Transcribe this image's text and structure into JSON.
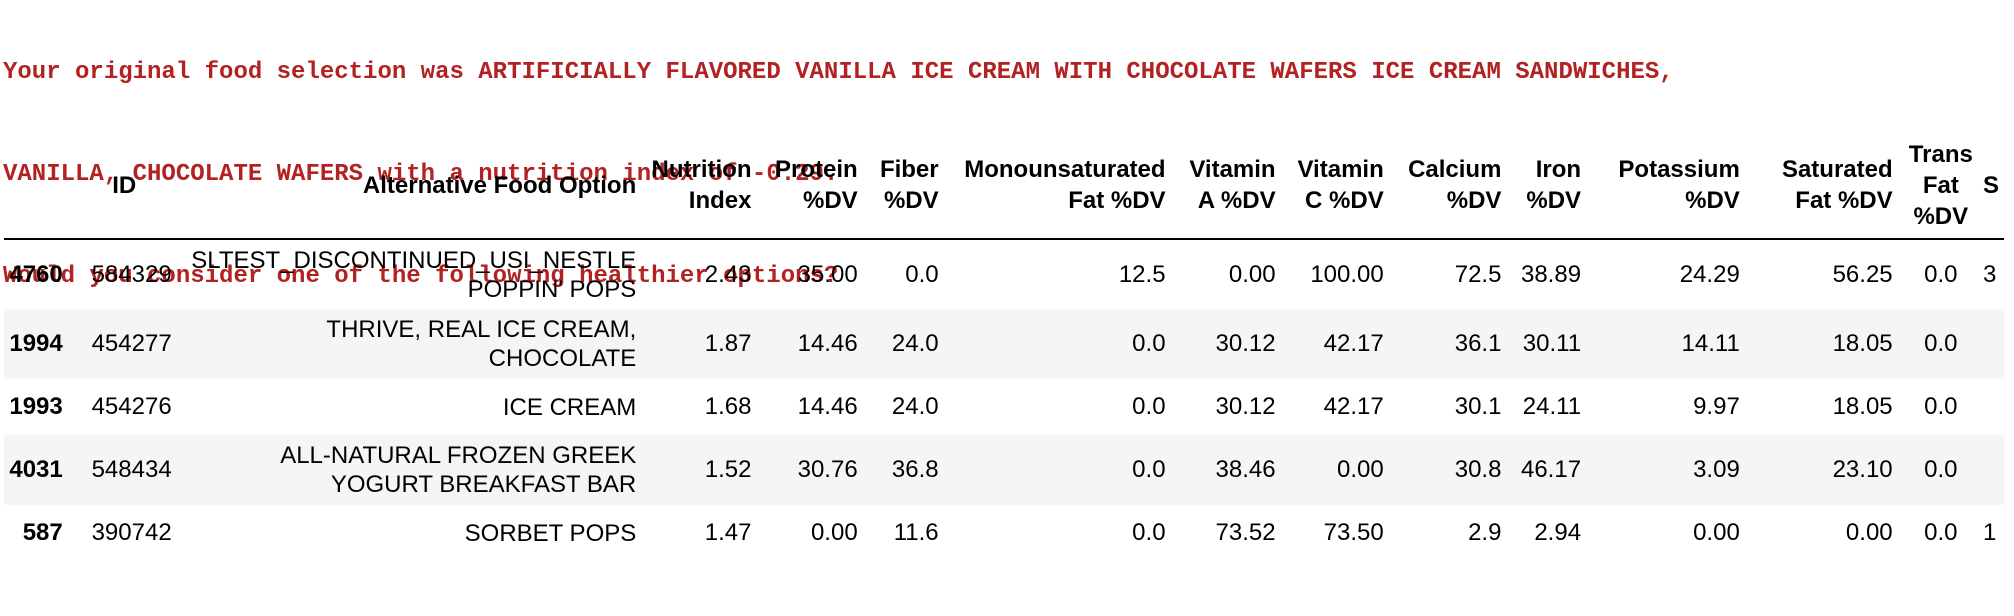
{
  "message": {
    "line1": "Your original food selection was ARTIFICIALLY FLAVORED VANILLA ICE CREAM WITH CHOCOLATE WAFERS ICE CREAM SANDWICHES,",
    "line2": "VANILLA, CHOCOLATE WAFERS with a nutrition index of -0.29.",
    "line3": "Would you consider one of the following healthier options?"
  },
  "table": {
    "columns": [
      {
        "l1": "",
        "l2": "",
        "l3": ""
      },
      {
        "l1": "ID",
        "l2": "",
        "l3": ""
      },
      {
        "l1": "Alternative Food Option",
        "l2": "",
        "l3": ""
      },
      {
        "l1": "Nutrition",
        "l2": "Index",
        "l3": ""
      },
      {
        "l1": "Protein",
        "l2": "%DV",
        "l3": ""
      },
      {
        "l1": "Fiber",
        "l2": "%DV",
        "l3": ""
      },
      {
        "l1": "Monounsaturated",
        "l2": "Fat %DV",
        "l3": ""
      },
      {
        "l1": "Vitamin",
        "l2": "A %DV",
        "l3": ""
      },
      {
        "l1": "Vitamin",
        "l2": "C %DV",
        "l3": ""
      },
      {
        "l1": "Calcium",
        "l2": "%DV",
        "l3": ""
      },
      {
        "l1": "Iron",
        "l2": "%DV",
        "l3": ""
      },
      {
        "l1": "Potassium",
        "l2": "%DV",
        "l3": ""
      },
      {
        "l1": "Saturated",
        "l2": "Fat %DV",
        "l3": ""
      },
      {
        "l1": "Trans",
        "l2": "Fat",
        "l3": "%DV"
      },
      {
        "l1": "S",
        "l2": "",
        "l3": ""
      }
    ],
    "rows": [
      {
        "index": "4760",
        "id": "584329",
        "food1": "SLTEST_DISCONTINUED_USI_NESTLE",
        "food2": "POPPIN' POPS",
        "nutrition_index": "2.43",
        "protein": "35.00",
        "fiber": "0.0",
        "mono_fat": "12.5",
        "vit_a": "0.00",
        "vit_c": "100.00",
        "calcium": "72.5",
        "iron": "38.89",
        "potassium": "24.29",
        "sat_fat": "56.25",
        "trans_fat": "0.0",
        "cut": "3"
      },
      {
        "index": "1994",
        "id": "454277",
        "food1": "THRIVE, REAL ICE CREAM,",
        "food2": "CHOCOLATE",
        "nutrition_index": "1.87",
        "protein": "14.46",
        "fiber": "24.0",
        "mono_fat": "0.0",
        "vit_a": "30.12",
        "vit_c": "42.17",
        "calcium": "36.1",
        "iron": "30.11",
        "potassium": "14.11",
        "sat_fat": "18.05",
        "trans_fat": "0.0",
        "cut": ""
      },
      {
        "index": "1993",
        "id": "454276",
        "food1": "ICE CREAM",
        "food2": "",
        "nutrition_index": "1.68",
        "protein": "14.46",
        "fiber": "24.0",
        "mono_fat": "0.0",
        "vit_a": "30.12",
        "vit_c": "42.17",
        "calcium": "30.1",
        "iron": "24.11",
        "potassium": "9.97",
        "sat_fat": "18.05",
        "trans_fat": "0.0",
        "cut": ""
      },
      {
        "index": "4031",
        "id": "548434",
        "food1": "ALL-NATURAL FROZEN GREEK",
        "food2": "YOGURT BREAKFAST BAR",
        "nutrition_index": "1.52",
        "protein": "30.76",
        "fiber": "36.8",
        "mono_fat": "0.0",
        "vit_a": "38.46",
        "vit_c": "0.00",
        "calcium": "30.8",
        "iron": "46.17",
        "potassium": "3.09",
        "sat_fat": "23.10",
        "trans_fat": "0.0",
        "cut": ""
      },
      {
        "index": "587",
        "id": "390742",
        "food1": "SORBET POPS",
        "food2": "",
        "nutrition_index": "1.47",
        "protein": "0.00",
        "fiber": "11.6",
        "mono_fat": "0.0",
        "vit_a": "73.52",
        "vit_c": "73.50",
        "calcium": "2.9",
        "iron": "2.94",
        "potassium": "0.00",
        "sat_fat": "0.00",
        "trans_fat": "0.0",
        "cut": "1"
      }
    ]
  }
}
